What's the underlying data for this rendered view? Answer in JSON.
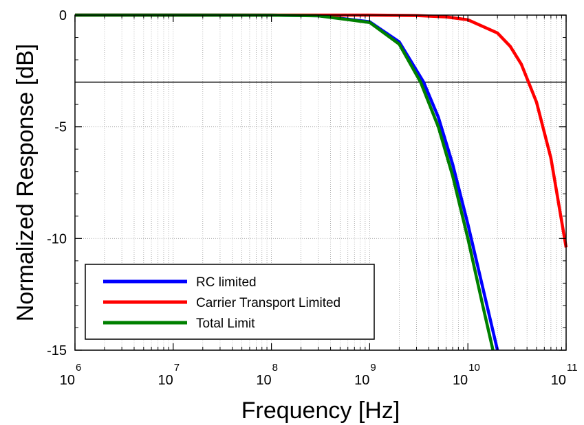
{
  "chart_data": {
    "type": "line",
    "x_scale": "log",
    "xlabel": "Frequency [Hz]",
    "ylabel": "Normalized Response [dB]",
    "xlim": [
      1000000,
      100000000000
    ],
    "ylim": [
      -15,
      0
    ],
    "grid": true,
    "x_tick_labels": [
      {
        "base": "10",
        "exp": "6"
      },
      {
        "base": "10",
        "exp": "7"
      },
      {
        "base": "10",
        "exp": "8"
      },
      {
        "base": "10",
        "exp": "9"
      },
      {
        "base": "10",
        "exp": "10"
      },
      {
        "base": "10",
        "exp": "11"
      }
    ],
    "y_ticks": [
      0,
      -5,
      -10,
      -15
    ],
    "y_tick_labels": [
      "0",
      "-5",
      "-10",
      "-15"
    ],
    "reference_line": {
      "y": -3
    },
    "legend_position": "bottom-left",
    "series": [
      {
        "name": "RC limited",
        "color": "#0000ff",
        "x": [
          1000000,
          10000000,
          100000000,
          300000000,
          1000000000,
          2000000000,
          3540000000,
          5000000000,
          7000000000,
          10000000000,
          14000000000,
          20000000000
        ],
        "y": [
          0,
          0,
          -0.003,
          -0.027,
          -0.3,
          -1.2,
          -3.0,
          -4.57,
          -6.68,
          -9.36,
          -12.1,
          -15.0
        ]
      },
      {
        "name": "Carrier Transport Limited",
        "color": "#ff0000",
        "x": [
          1000000,
          10000000,
          100000000,
          1000000000,
          3000000000,
          6000000000,
          10000000000,
          20000000000,
          27000000000,
          35000000000,
          50000000000,
          70000000000,
          100000000000
        ],
        "y": [
          0,
          0,
          0,
          0,
          -0.02,
          -0.08,
          -0.21,
          -0.8,
          -1.4,
          -2.2,
          -3.9,
          -6.4,
          -10.4
        ]
      },
      {
        "name": "Total Limit",
        "color": "#008000",
        "x": [
          1000000,
          10000000,
          100000000,
          300000000,
          1000000000,
          2000000000,
          3300000000,
          5000000000,
          7000000000,
          10000000000,
          14000000000,
          18000000000
        ],
        "y": [
          0,
          0,
          -0.003,
          -0.03,
          -0.33,
          -1.3,
          -3.0,
          -5.0,
          -7.2,
          -10.0,
          -12.9,
          -15.0
        ]
      }
    ]
  }
}
